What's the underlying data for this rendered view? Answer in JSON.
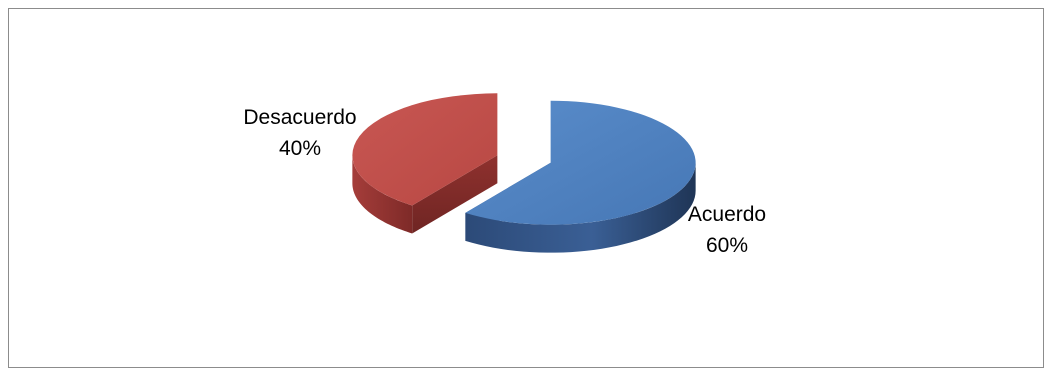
{
  "chart_data": {
    "type": "pie",
    "style": "3d-exploded",
    "title": "",
    "slices": [
      {
        "label": "Acuerdo",
        "value": 60,
        "percent_label": "60%",
        "color": "#4f81bd"
      },
      {
        "label": "Desacuerdo",
        "value": 40,
        "percent_label": "40%",
        "color": "#c0504d"
      }
    ],
    "legend": "none"
  }
}
